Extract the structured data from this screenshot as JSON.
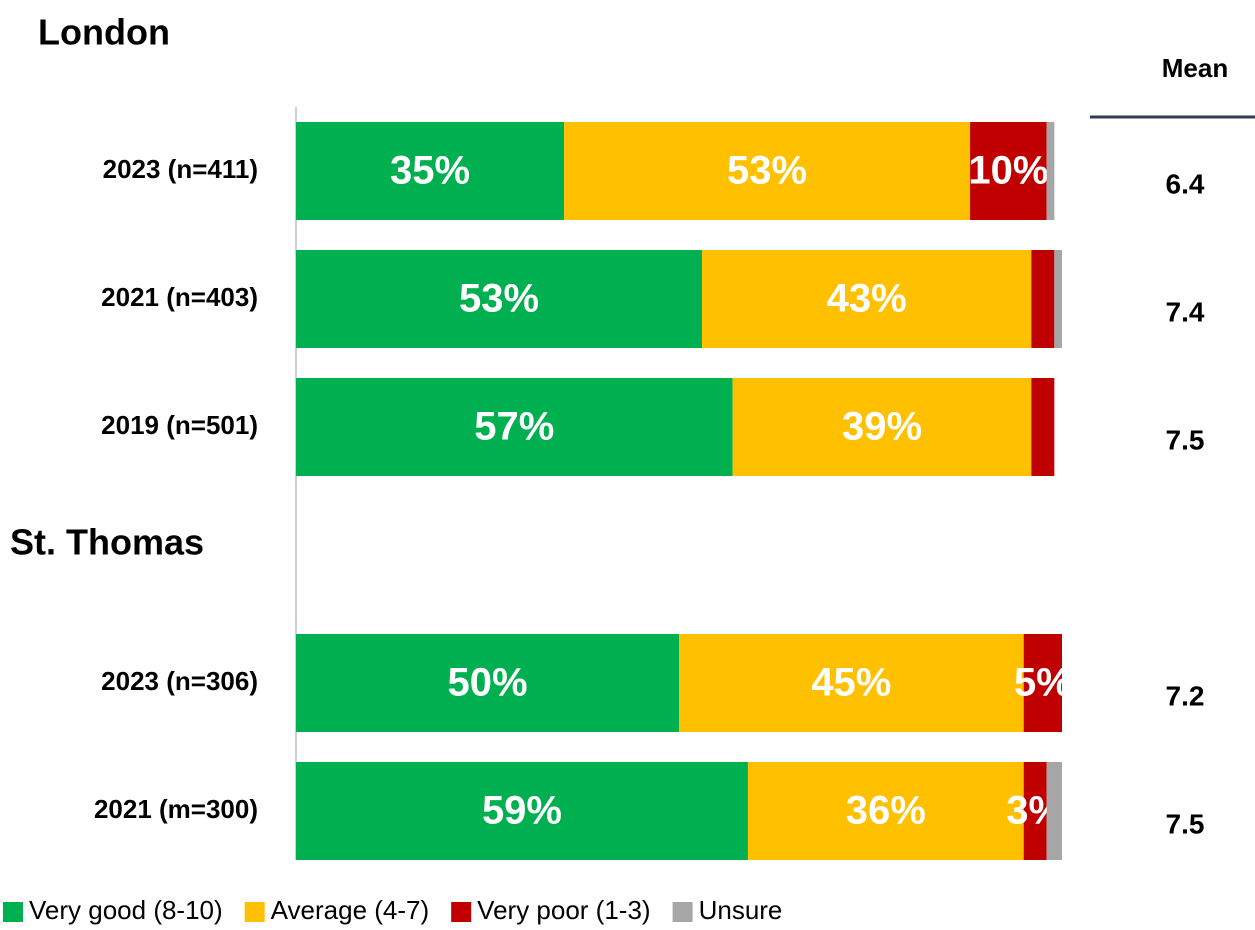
{
  "chart_data": {
    "type": "stacked-bar-horizontal",
    "sections": [
      "London",
      "St. Thomas"
    ],
    "categories": [
      "2023 (n=411)",
      "2021 (n=403)",
      "2019 (n=501)",
      null,
      "2023 (n=306)",
      "2021 (m=300)"
    ],
    "xlim": [
      0,
      100
    ],
    "series": [
      {
        "name": "Very good (8-10)",
        "color": "#00b050",
        "values": [
          35,
          53,
          57,
          null,
          50,
          59
        ],
        "value_labels": [
          "35%",
          "53%",
          "57%",
          null,
          "50%",
          "59%"
        ]
      },
      {
        "name": "Average (4-7)",
        "color": "#ffc000",
        "values": [
          53,
          43,
          39,
          null,
          45,
          36
        ],
        "value_labels": [
          "53%",
          "43%",
          "39%",
          null,
          "45%",
          "36%"
        ]
      },
      {
        "name": "Very poor (1-3)",
        "color": "#c00000",
        "values": [
          10,
          3,
          3,
          null,
          5,
          3
        ],
        "value_labels": [
          "10%",
          null,
          null,
          null,
          "5%",
          "3%"
        ]
      },
      {
        "name": "Unsure",
        "color": "#a6a6a6",
        "values": [
          1,
          1,
          0,
          null,
          0,
          2
        ],
        "value_labels": [
          null,
          null,
          null,
          null,
          null,
          null
        ]
      }
    ],
    "mean_label": "Mean",
    "means": [
      6.4,
      7.4,
      7.5,
      null,
      7.2,
      7.5
    ]
  }
}
